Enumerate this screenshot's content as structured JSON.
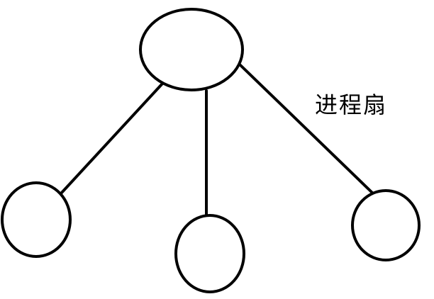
{
  "diagram": {
    "label": "进程扇",
    "line_color": "#000000",
    "background_color": "#ffffff"
  }
}
